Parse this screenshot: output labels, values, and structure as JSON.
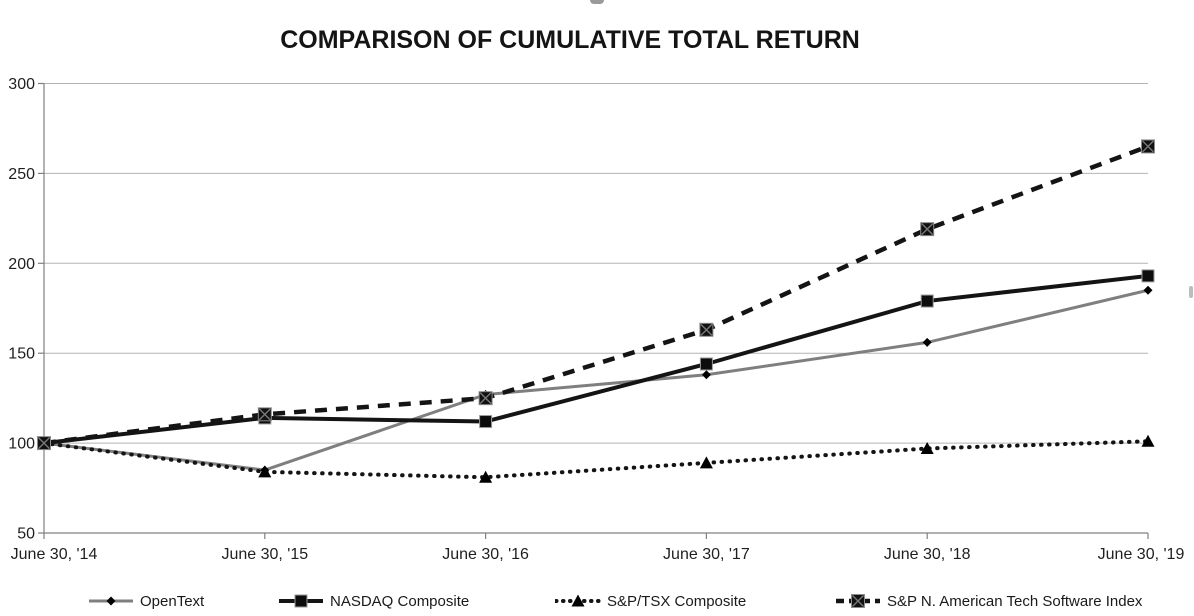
{
  "page": {
    "background": "#ffffff"
  },
  "chart_data": {
    "type": "line",
    "title": "COMPARISON OF CUMULATIVE TOTAL RETURN",
    "x_labels": [
      "June 30, '14",
      "June 30, '15",
      "June 30, '16",
      "June 30, '17",
      "June 30, '18",
      "June 30, '19"
    ],
    "y_ticks": [
      50,
      100,
      150,
      200,
      250,
      300
    ],
    "ylim": [
      50,
      300
    ],
    "grid": "horizontal",
    "legend_position": "bottom",
    "colors": {
      "gridline": "#b3b3b3",
      "axis": "#808080",
      "text": "#1f1f1f",
      "opentext_line": "#7f7f7f",
      "black_line": "#141414"
    },
    "series": [
      {
        "name": "OpenText",
        "values": [
          100,
          85,
          127,
          138,
          156,
          185
        ],
        "color": "#7f7f7f",
        "line": "solid",
        "width": 3,
        "marker": "diamond"
      },
      {
        "name": "NASDAQ Composite",
        "values": [
          100,
          114,
          112,
          144,
          179,
          193
        ],
        "color": "#141414",
        "line": "solid",
        "width": 4,
        "marker": "square"
      },
      {
        "name": "S&P/TSX Composite",
        "values": [
          100,
          84,
          81,
          89,
          97,
          101
        ],
        "color": "#141414",
        "line": "dotted",
        "width": 4,
        "marker": "triangle"
      },
      {
        "name": "S&P N. American Tech Software Index",
        "values": [
          100,
          116,
          125,
          163,
          219,
          265
        ],
        "color": "#141414",
        "line": "dashed",
        "width": 4.5,
        "marker": "square-x"
      }
    ]
  }
}
